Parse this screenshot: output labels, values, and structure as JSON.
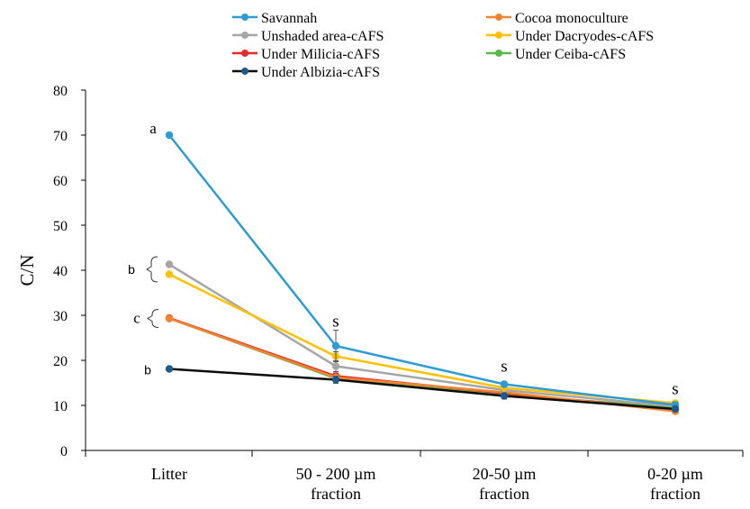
{
  "chart_data": {
    "type": "line",
    "categories": [
      [
        "Litter"
      ],
      [
        "50 - 200 µm",
        "fraction"
      ],
      [
        "20-50 µm",
        "fraction"
      ],
      [
        "0-20 µm",
        "fraction"
      ]
    ],
    "ylabel": "C/N",
    "ylim": [
      0,
      80
    ],
    "yticks": [
      0,
      10,
      20,
      30,
      40,
      50,
      60,
      70,
      80
    ],
    "grid": false,
    "legend_position": "top",
    "series": [
      {
        "name": "Savannah",
        "color": "#2E9BD6",
        "values": [
          70,
          23.2,
          14.7,
          10.1
        ],
        "errors": [
          0.4,
          3.5,
          0.6,
          0.7
        ]
      },
      {
        "name": "Cocoa monoculture",
        "color": "#F28430",
        "values": [
          29.3,
          16.2,
          12.9,
          8.7
        ],
        "errors": [
          0.4,
          0.7,
          0.5,
          0.4
        ]
      },
      {
        "name": "Unshaded area-cAFS",
        "color": "#A6A6A6",
        "values": [
          41.3,
          18.7,
          13.4,
          9.8
        ],
        "errors": [
          0.4,
          1.2,
          0.5,
          0.4
        ]
      },
      {
        "name": "Under Dacryodes-cAFS",
        "color": "#FFC000",
        "values": [
          39.1,
          20.9,
          13.9,
          10.5
        ],
        "errors": [
          0.4,
          1.0,
          0.6,
          0.5
        ]
      },
      {
        "name": "Under Milicia-cAFS",
        "color": "#E82A2A",
        "values": [
          29.4,
          16.5,
          12.7,
          9.0
        ],
        "errors": [
          0.4,
          0.7,
          0.5,
          0.4
        ]
      },
      {
        "name": "Under Ceiba-cAFS",
        "color": "#5BB84A",
        "values": [
          29.3,
          16.0,
          12.3,
          9.6
        ],
        "errors": [
          0.4,
          0.7,
          0.5,
          0.4
        ]
      },
      {
        "name": "Under Albizia-cAFS",
        "color": "#0B0B0B",
        "marker_color": "#1E5A8C",
        "values": [
          18.1,
          15.7,
          12.1,
          9.2
        ],
        "errors": [
          0.4,
          0.8,
          0.7,
          0.5
        ]
      }
    ],
    "annotations": [
      {
        "text": "a",
        "x": 0,
        "y": 70
      },
      {
        "text": "b",
        "x": 0,
        "y": 41.3,
        "y2": 39.1,
        "bracket": true
      },
      {
        "text": "c",
        "x": 0,
        "y": 29.3,
        "bracket": true
      },
      {
        "text": "b",
        "x": 0,
        "y": 18.1
      },
      {
        "text": "s",
        "x": 1,
        "y": 27.5
      },
      {
        "text": "s",
        "x": 2,
        "y": 17.5
      },
      {
        "text": "s",
        "x": 3,
        "y": 12.5
      }
    ]
  }
}
